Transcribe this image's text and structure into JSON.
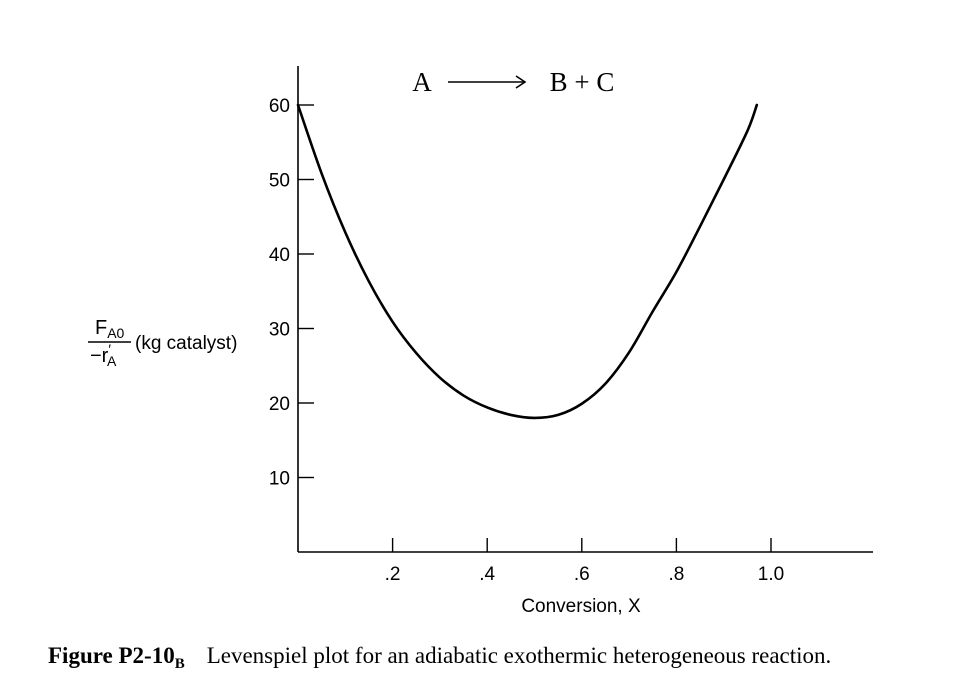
{
  "chart_data": {
    "type": "line",
    "reaction": {
      "reactant": "A",
      "products": "B + C"
    },
    "xlabel": "Conversion, X",
    "ylabel": {
      "numerator": "F",
      "numerator_sub": "A0",
      "denominator_sign": "−r",
      "denominator_prime": "′",
      "denominator_sub": "A",
      "units": "(kg catalyst)"
    },
    "xlim": [
      0,
      1.2
    ],
    "ylim": [
      0,
      66
    ],
    "x_ticks": [
      {
        "value": 0.2,
        "label": ".2"
      },
      {
        "value": 0.4,
        "label": ".4"
      },
      {
        "value": 0.6,
        "label": ".6"
      },
      {
        "value": 0.8,
        "label": ".8"
      },
      {
        "value": 1.0,
        "label": "1.0"
      }
    ],
    "y_ticks": [
      {
        "value": 10,
        "label": "10"
      },
      {
        "value": 20,
        "label": "20"
      },
      {
        "value": 30,
        "label": "30"
      },
      {
        "value": 40,
        "label": "40"
      },
      {
        "value": 50,
        "label": "50"
      },
      {
        "value": 60,
        "label": "60"
      }
    ],
    "grid": false,
    "series": [
      {
        "color": "#000000",
        "x": [
          0.0,
          0.05,
          0.1,
          0.15,
          0.2,
          0.25,
          0.3,
          0.35,
          0.4,
          0.45,
          0.5,
          0.55,
          0.6,
          0.65,
          0.7,
          0.75,
          0.8,
          0.85,
          0.9,
          0.95,
          0.97
        ],
        "y": [
          60.0,
          50.8,
          42.9,
          36.3,
          30.9,
          26.7,
          23.4,
          21.0,
          19.4,
          18.4,
          18.0,
          18.4,
          19.9,
          22.6,
          26.8,
          32.3,
          37.6,
          43.7,
          50.0,
          56.5,
          60.0
        ]
      }
    ]
  },
  "caption": {
    "label": "Figure P2-10",
    "label_sub": "B",
    "text": "Levenspiel plot for an adiabatic exothermic heterogeneous reaction."
  }
}
